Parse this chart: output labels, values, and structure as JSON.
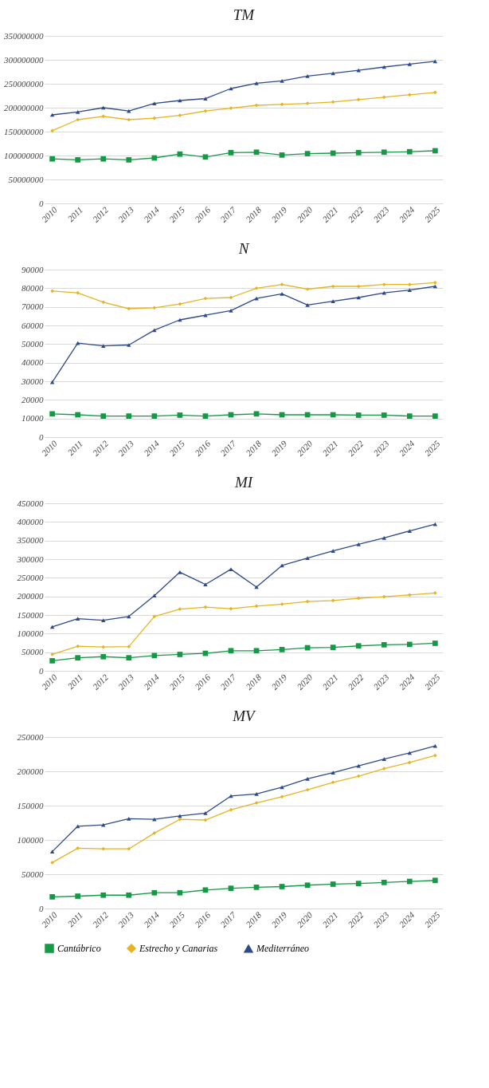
{
  "chart_data": [
    {
      "type": "line",
      "title": "TM",
      "categories": [
        "2010",
        "2011",
        "2012",
        "2013",
        "2014",
        "2015",
        "2016",
        "2017",
        "2018",
        "2019",
        "2020",
        "2021",
        "2022",
        "2023",
        "2024",
        "2025"
      ],
      "ylim": [
        0,
        350000000
      ],
      "yticks": [
        0,
        50000000,
        100000000,
        150000000,
        200000000,
        250000000,
        300000000,
        350000000
      ],
      "grid": "y",
      "legend": false,
      "series": [
        {
          "color": "#149a45",
          "marker": "square",
          "values": [
            93000000,
            91000000,
            93000000,
            91000000,
            95000000,
            103000000,
            97000000,
            106000000,
            107000000,
            101000000,
            104000000,
            105000000,
            106000000,
            107000000,
            108000000,
            110000000
          ]
        },
        {
          "color": "#e6b422",
          "marker": "diamond",
          "values": [
            152000000,
            175000000,
            182000000,
            175000000,
            178000000,
            184000000,
            193000000,
            199000000,
            205000000,
            207000000,
            209000000,
            212000000,
            217000000,
            222000000,
            227000000,
            232000000
          ]
        },
        {
          "color": "#2f4a8a",
          "marker": "triangle",
          "values": [
            185000000,
            191000000,
            200000000,
            193000000,
            209000000,
            215000000,
            219000000,
            240000000,
            251000000,
            256000000,
            266000000,
            272000000,
            278000000,
            285000000,
            291000000,
            297000000
          ]
        }
      ]
    },
    {
      "type": "line",
      "title": "N",
      "categories": [
        "2010",
        "2011",
        "2012",
        "2013",
        "2014",
        "2015",
        "2016",
        "2017",
        "2018",
        "2019",
        "2020",
        "2021",
        "2022",
        "2023",
        "2024",
        "2025"
      ],
      "ylim": [
        0,
        90000
      ],
      "yticks": [
        0,
        10000,
        20000,
        30000,
        40000,
        50000,
        60000,
        70000,
        80000,
        90000
      ],
      "grid": "y",
      "legend": false,
      "series": [
        {
          "color": "#149a45",
          "marker": "square",
          "values": [
            12500,
            12000,
            11300,
            11300,
            11300,
            11800,
            11300,
            12000,
            12500,
            12000,
            12000,
            12000,
            11800,
            11800,
            11300,
            11300
          ]
        },
        {
          "color": "#e6b422",
          "marker": "diamond",
          "values": [
            78500,
            77500,
            72500,
            69000,
            69500,
            71500,
            74500,
            75000,
            80000,
            82000,
            79500,
            81000,
            81000,
            82000,
            82000,
            83000
          ]
        },
        {
          "color": "#2f4a8a",
          "marker": "triangle",
          "values": [
            29500,
            50500,
            49000,
            49500,
            57500,
            63000,
            65500,
            68000,
            74500,
            77000,
            71000,
            73000,
            75000,
            77500,
            79000,
            81000
          ]
        }
      ]
    },
    {
      "type": "line",
      "title": "MI",
      "categories": [
        "2010",
        "2011",
        "2012",
        "2013",
        "2014",
        "2015",
        "2016",
        "2017",
        "2018",
        "2019",
        "2020",
        "2021",
        "2022",
        "2023",
        "2024",
        "2025"
      ],
      "ylim": [
        0,
        450000
      ],
      "yticks": [
        0,
        50000,
        100000,
        150000,
        200000,
        250000,
        300000,
        350000,
        400000,
        450000
      ],
      "grid": "y",
      "legend": false,
      "series": [
        {
          "color": "#149a45",
          "marker": "square",
          "values": [
            27000,
            35000,
            38000,
            35000,
            41000,
            44000,
            47000,
            54000,
            54000,
            57000,
            62000,
            63000,
            67000,
            70000,
            71000,
            74000
          ]
        },
        {
          "color": "#e6b422",
          "marker": "diamond",
          "values": [
            44000,
            66000,
            64000,
            65000,
            146000,
            166000,
            171000,
            167000,
            174000,
            179000,
            186000,
            189000,
            195000,
            199000,
            204000,
            209000
          ]
        },
        {
          "color": "#2f4a8a",
          "marker": "triangle",
          "values": [
            118000,
            140000,
            136000,
            146000,
            202000,
            265000,
            232000,
            273000,
            225000,
            283000,
            303000,
            322000,
            340000,
            357000,
            376000,
            394000
          ]
        }
      ]
    },
    {
      "type": "line",
      "title": "MV",
      "categories": [
        "2010",
        "2011",
        "2012",
        "2013",
        "2014",
        "2015",
        "2016",
        "2017",
        "2018",
        "2019",
        "2020",
        "2021",
        "2022",
        "2023",
        "2024",
        "2025"
      ],
      "ylim": [
        0,
        250000
      ],
      "yticks": [
        0,
        50000,
        100000,
        150000,
        200000,
        250000
      ],
      "grid": "y",
      "legend": "bottom",
      "series": [
        {
          "name": "Cantábrico",
          "color": "#149a45",
          "marker": "square",
          "values": [
            17000,
            18000,
            19500,
            19500,
            23000,
            23000,
            27000,
            29500,
            31000,
            32000,
            34000,
            35500,
            36500,
            38000,
            39500,
            41000
          ]
        },
        {
          "name": "Estrecho y Canarias",
          "color": "#e6b422",
          "marker": "diamond",
          "values": [
            67000,
            88000,
            87000,
            87000,
            110000,
            130000,
            129000,
            144000,
            154000,
            163000,
            173000,
            184000,
            193000,
            204000,
            213000,
            223000
          ]
        },
        {
          "name": "Mediterráneo",
          "color": "#2f4a8a",
          "marker": "triangle",
          "values": [
            83000,
            120000,
            122000,
            131000,
            130000,
            135000,
            139000,
            164000,
            167000,
            177000,
            189000,
            198000,
            208000,
            218000,
            227000,
            237000
          ]
        }
      ]
    }
  ]
}
